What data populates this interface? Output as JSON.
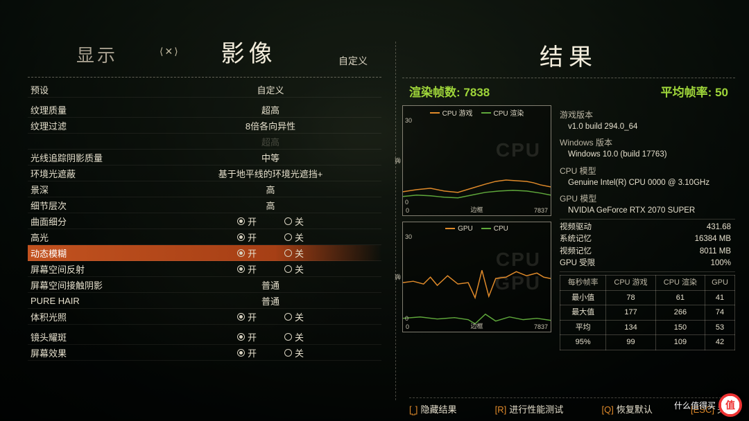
{
  "colors": {
    "accent_green": "#9fd63a",
    "accent_orange": "#e08a2a",
    "highlight_row": "#c2521f",
    "cpu_game_line": "#e08a2a",
    "cpu_render_line": "#5fa83b",
    "gpu_line": "#e08a2a",
    "cpu_line": "#5fa83b",
    "watermark_badge": "#e33"
  },
  "tabs": {
    "display": "显示",
    "image": "影像",
    "glyph": "⟨✕⟩",
    "custom_tag": "自定义"
  },
  "settings": [
    {
      "label": "预设",
      "type": "value",
      "value": "自定义"
    },
    {
      "label": "纹理质量",
      "type": "value",
      "value": "超高",
      "gap": true
    },
    {
      "label": "纹理过滤",
      "type": "value",
      "value": "8倍各向异性"
    },
    {
      "label": "",
      "type": "value",
      "value": "超高",
      "dim": true
    },
    {
      "label": "光线追踪阴影质量",
      "type": "value",
      "value": "中等"
    },
    {
      "label": "环境光遮蔽",
      "type": "value",
      "value": "基于地平线的环境光遮挡+"
    },
    {
      "label": "景深",
      "type": "value",
      "value": "高"
    },
    {
      "label": "细节层次",
      "type": "value",
      "value": "高"
    },
    {
      "label": "曲面细分",
      "type": "toggle",
      "on": true
    },
    {
      "label": "高光",
      "type": "toggle",
      "on": true
    },
    {
      "label": "动态模糊",
      "type": "toggle",
      "on": true,
      "selected": true
    },
    {
      "label": "屏幕空间反射",
      "type": "toggle",
      "on": true
    },
    {
      "label": "屏幕空间接触阴影",
      "type": "value",
      "value": "普通"
    },
    {
      "label": "PURE HAIR",
      "type": "value",
      "value": "普通"
    },
    {
      "label": "体积光照",
      "type": "toggle",
      "on": true
    },
    {
      "label": "镜头耀斑",
      "type": "toggle",
      "on": true,
      "gap": true
    },
    {
      "label": "屏幕效果",
      "type": "toggle",
      "on": true
    }
  ],
  "toggle_labels": {
    "on": "开",
    "off": "关"
  },
  "results": {
    "title": "结果",
    "frames_rendered_label": "渲染帧数:",
    "frames_rendered_value": "7838",
    "avg_fps_label": "平均帧率:",
    "avg_fps_value": "50"
  },
  "chart_common": {
    "y_max": "30",
    "y_min": "0",
    "x_min": "0",
    "x_max": "7837",
    "x_center": "边框",
    "axis_label": "帧"
  },
  "cpu_chart": {
    "legend": [
      {
        "label": "CPU 游戏",
        "color": "#e08a2a"
      },
      {
        "label": "CPU 渲染",
        "color": "#5fa83b"
      }
    ],
    "watermark": "CPU",
    "series": {
      "cpu_game": "0,125 20,122 40,120 60,124 80,126 100,120 120,114 135,110 150,108 165,109 180,110 190,112 200,115 215,118",
      "cpu_render": "0,132 20,130 40,131 60,133 80,134 100,130 120,126 140,124 160,123 180,124 200,127 215,130"
    }
  },
  "gpu_chart": {
    "legend": [
      {
        "label": "GPU",
        "color": "#e08a2a"
      },
      {
        "label": "CPU",
        "color": "#5fa83b"
      }
    ],
    "watermarks": [
      "CPU",
      "GPU"
    ],
    "series": {
      "gpu": "0,88 15,86 30,90 40,80 50,92 65,78 80,90 95,88 105,110 115,70 125,108 135,82 150,80 165,72 180,78 195,74 205,80 215,82",
      "cpu": "0,140 25,138 50,141 75,139 95,142 105,148 120,134 135,144 155,138 175,142 195,140 215,143"
    }
  },
  "sysinfo": {
    "game_version_label": "游戏版本",
    "game_version_value": "v1.0 build 294.0_64",
    "windows_label": "Windows 版本",
    "windows_value": "Windows 10.0 (build 17763)",
    "cpu_label": "CPU 模型",
    "cpu_value": "Genuine Intel(R) CPU 0000 @ 3.10GHz",
    "gpu_label": "GPU 模型",
    "gpu_value": "NVIDIA GeForce RTX 2070 SUPER",
    "pairs": [
      {
        "k": "视频驱动",
        "v": "431.68"
      },
      {
        "k": "系统记忆",
        "v": "16384 MB"
      },
      {
        "k": "视频记忆",
        "v": "8011 MB"
      },
      {
        "k": "GPU 受限",
        "v": "100%"
      }
    ]
  },
  "fps_table": {
    "headers": [
      "每秒帧率",
      "CPU 游戏",
      "CPU 渲染",
      "GPU"
    ],
    "rows": [
      [
        "最小值",
        "78",
        "61",
        "41"
      ],
      [
        "最大值",
        "177",
        "266",
        "74"
      ],
      [
        "平均",
        "134",
        "150",
        "53"
      ],
      [
        "95%",
        "99",
        "109",
        "42"
      ]
    ]
  },
  "footer": [
    {
      "key": "[⎵]",
      "text": "隐藏结果"
    },
    {
      "key": "[R]",
      "text": "进行性能测试"
    },
    {
      "key": "[Q]",
      "text": "恢复默认"
    },
    {
      "key": "[ESC]",
      "text": "关闭"
    }
  ],
  "watermark": {
    "glyph": "值",
    "text": "什么值得买"
  }
}
